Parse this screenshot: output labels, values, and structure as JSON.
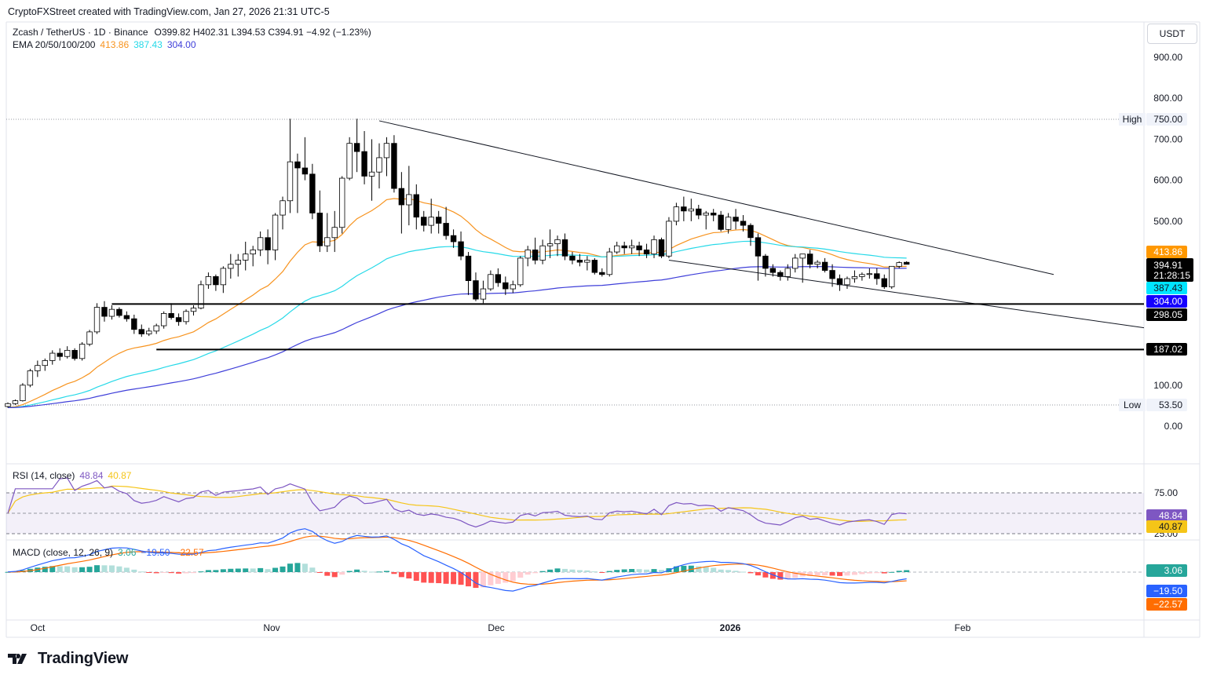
{
  "caption": "CryptoFXStreet created with TradingView.com, Jan 27, 2026 21:31 UTC-5",
  "currency_button": "USDT",
  "brand": "TradingView",
  "legend": {
    "symbol": "Zcash / TetherUS · 1D · Binance",
    "ohlc": "O399.82  H402.31  L394.53  C394.91  −4.92 (−1.23%)",
    "ema_label": "EMA 20/50/100/200",
    "ema20": "413.86",
    "ema50": "387.43",
    "ema100": "304.00"
  },
  "rsi_legend": {
    "label": "RSI (14, close)",
    "rsi": "48.84",
    "ma": "40.87"
  },
  "macd_legend": {
    "label": "MACD (close, 12, 26, 9)",
    "hist": "3.06",
    "macd": "−19.50",
    "signal": "−22.57"
  },
  "colors": {
    "up": "#ffffff",
    "down": "#000000",
    "ema20": "#f7931e",
    "ema50": "#26d9e8",
    "ema100": "#3f3fd9",
    "rsi": "#7e57c2",
    "rsi_ma": "#f5c518",
    "macd": "#2962ff",
    "signal": "#ff6d00",
    "hist_pos_strong": "#26a69a",
    "hist_pos_weak": "#b2dfdb",
    "hist_neg_strong": "#ff5252",
    "hist_neg_weak": "#ffcdd2",
    "usdt_pill": "#ff9800",
    "cyan_pill": "#00e5ff",
    "blue_pill": "#1500ff"
  },
  "price_axis": {
    "ticks": [
      "900.00",
      "800.00",
      "700.00",
      "600.00",
      "500.00",
      "100.00",
      "0.00"
    ]
  },
  "markers": {
    "high_label": "High",
    "high_value": "750.00",
    "low_label": "Low",
    "low_value": "53.50",
    "last_price": "394.91",
    "countdown": "21:28:15",
    "ema20_tag": "413.86",
    "ema50_tag": "387.43",
    "ema100_tag": "304.00",
    "level_1": "298.05",
    "level_2": "187.02"
  },
  "rsi_axis": {
    "ticks": [
      "75.00",
      "25.00"
    ]
  },
  "time_axis": {
    "labels": [
      "Oct",
      "Nov",
      "Dec",
      "2026",
      "Feb"
    ]
  },
  "chart_data": {
    "type": "candlestick",
    "title": "Zcash / TetherUS · 1D · Binance",
    "ylim": [
      0,
      900
    ],
    "x_range": [
      "2025-09-27",
      "2026-02-28"
    ],
    "last_close": 394.91,
    "support_levels": [
      298.05,
      187.02
    ],
    "high": 750.0,
    "low": 53.5,
    "candles": [
      [
        48,
        58,
        45,
        55
      ],
      [
        55,
        65,
        52,
        62
      ],
      [
        62,
        105,
        60,
        100
      ],
      [
        100,
        140,
        95,
        135
      ],
      [
        135,
        160,
        120,
        148
      ],
      [
        148,
        165,
        135,
        160
      ],
      [
        160,
        185,
        150,
        178
      ],
      [
        178,
        190,
        160,
        170
      ],
      [
        170,
        195,
        165,
        185
      ],
      [
        185,
        190,
        160,
        165
      ],
      [
        165,
        205,
        160,
        200
      ],
      [
        200,
        235,
        195,
        230
      ],
      [
        230,
        300,
        225,
        290
      ],
      [
        290,
        305,
        255,
        268
      ],
      [
        268,
        295,
        260,
        285
      ],
      [
        285,
        290,
        265,
        270
      ],
      [
        270,
        280,
        255,
        262
      ],
      [
        262,
        272,
        225,
        236
      ],
      [
        236,
        248,
        218,
        225
      ],
      [
        225,
        240,
        220,
        232
      ],
      [
        232,
        250,
        225,
        245
      ],
      [
        245,
        280,
        238,
        275
      ],
      [
        275,
        300,
        260,
        265
      ],
      [
        265,
        275,
        245,
        255
      ],
      [
        255,
        285,
        248,
        280
      ],
      [
        280,
        295,
        270,
        288
      ],
      [
        288,
        355,
        285,
        345
      ],
      [
        345,
        375,
        335,
        365
      ],
      [
        365,
        370,
        330,
        345
      ],
      [
        345,
        390,
        325,
        385
      ],
      [
        385,
        420,
        360,
        395
      ],
      [
        395,
        420,
        365,
        405
      ],
      [
        405,
        450,
        380,
        420
      ],
      [
        420,
        440,
        390,
        430
      ],
      [
        430,
        475,
        415,
        460
      ],
      [
        460,
        480,
        395,
        430
      ],
      [
        430,
        520,
        405,
        515
      ],
      [
        515,
        560,
        480,
        550
      ],
      [
        550,
        750,
        520,
        645
      ],
      [
        645,
        665,
        520,
        630
      ],
      [
        630,
        705,
        600,
        615
      ],
      [
        615,
        640,
        505,
        520
      ],
      [
        520,
        575,
        425,
        440
      ],
      [
        440,
        520,
        425,
        460
      ],
      [
        460,
        525,
        425,
        485
      ],
      [
        485,
        610,
        470,
        605
      ],
      [
        605,
        705,
        600,
        690
      ],
      [
        690,
        750,
        620,
        670
      ],
      [
        670,
        720,
        590,
        610
      ],
      [
        610,
        700,
        550,
        620
      ],
      [
        620,
        690,
        580,
        655
      ],
      [
        655,
        705,
        610,
        690
      ],
      [
        690,
        710,
        570,
        580
      ],
      [
        580,
        620,
        470,
        540
      ],
      [
        540,
        635,
        490,
        565
      ],
      [
        565,
        590,
        480,
        510
      ],
      [
        510,
        525,
        475,
        490
      ],
      [
        490,
        555,
        470,
        510
      ],
      [
        510,
        525,
        470,
        495
      ],
      [
        495,
        535,
        455,
        465
      ],
      [
        465,
        480,
        435,
        450
      ],
      [
        450,
        475,
        405,
        415
      ],
      [
        415,
        425,
        320,
        355
      ],
      [
        355,
        375,
        305,
        310
      ],
      [
        310,
        355,
        300,
        335
      ],
      [
        335,
        380,
        330,
        370
      ],
      [
        370,
        385,
        340,
        350
      ],
      [
        350,
        365,
        320,
        335
      ],
      [
        335,
        355,
        325,
        345
      ],
      [
        345,
        415,
        340,
        410
      ],
      [
        410,
        440,
        390,
        430
      ],
      [
        430,
        460,
        395,
        405
      ],
      [
        405,
        455,
        395,
        440
      ],
      [
        440,
        480,
        410,
        445
      ],
      [
        445,
        465,
        415,
        455
      ],
      [
        455,
        470,
        405,
        415
      ],
      [
        415,
        425,
        395,
        405
      ],
      [
        405,
        420,
        390,
        400
      ],
      [
        400,
        415,
        380,
        405
      ],
      [
        405,
        410,
        370,
        375
      ],
      [
        375,
        385,
        365,
        370
      ],
      [
        370,
        435,
        365,
        425
      ],
      [
        425,
        450,
        420,
        440
      ],
      [
        440,
        450,
        420,
        435
      ],
      [
        435,
        455,
        420,
        440
      ],
      [
        440,
        450,
        415,
        430
      ],
      [
        430,
        445,
        410,
        420
      ],
      [
        420,
        465,
        410,
        455
      ],
      [
        455,
        460,
        410,
        415
      ],
      [
        415,
        510,
        410,
        500
      ],
      [
        500,
        545,
        490,
        535
      ],
      [
        535,
        560,
        500,
        525
      ],
      [
        525,
        555,
        500,
        530
      ],
      [
        530,
        540,
        505,
        515
      ],
      [
        515,
        525,
        480,
        520
      ],
      [
        520,
        530,
        500,
        515
      ],
      [
        515,
        525,
        475,
        480
      ],
      [
        480,
        520,
        470,
        510
      ],
      [
        510,
        530,
        480,
        500
      ],
      [
        500,
        515,
        475,
        490
      ],
      [
        490,
        495,
        440,
        460
      ],
      [
        460,
        470,
        355,
        415
      ],
      [
        415,
        420,
        365,
        385
      ],
      [
        385,
        395,
        365,
        375
      ],
      [
        375,
        380,
        355,
        365
      ],
      [
        365,
        395,
        355,
        385
      ],
      [
        385,
        420,
        375,
        410
      ],
      [
        410,
        420,
        350,
        420
      ],
      [
        420,
        430,
        385,
        395
      ],
      [
        395,
        405,
        385,
        400
      ],
      [
        400,
        410,
        375,
        380
      ],
      [
        380,
        395,
        340,
        360
      ],
      [
        360,
        370,
        330,
        345
      ],
      [
        345,
        365,
        335,
        360
      ],
      [
        360,
        380,
        350,
        365
      ],
      [
        365,
        375,
        355,
        370
      ],
      [
        370,
        385,
        360,
        372
      ],
      [
        372,
        385,
        345,
        360
      ],
      [
        360,
        370,
        335,
        340
      ],
      [
        340,
        390,
        335,
        390
      ],
      [
        390,
        402,
        385,
        399
      ],
      [
        399.82,
        402.31,
        394.53,
        394.91
      ]
    ]
  }
}
